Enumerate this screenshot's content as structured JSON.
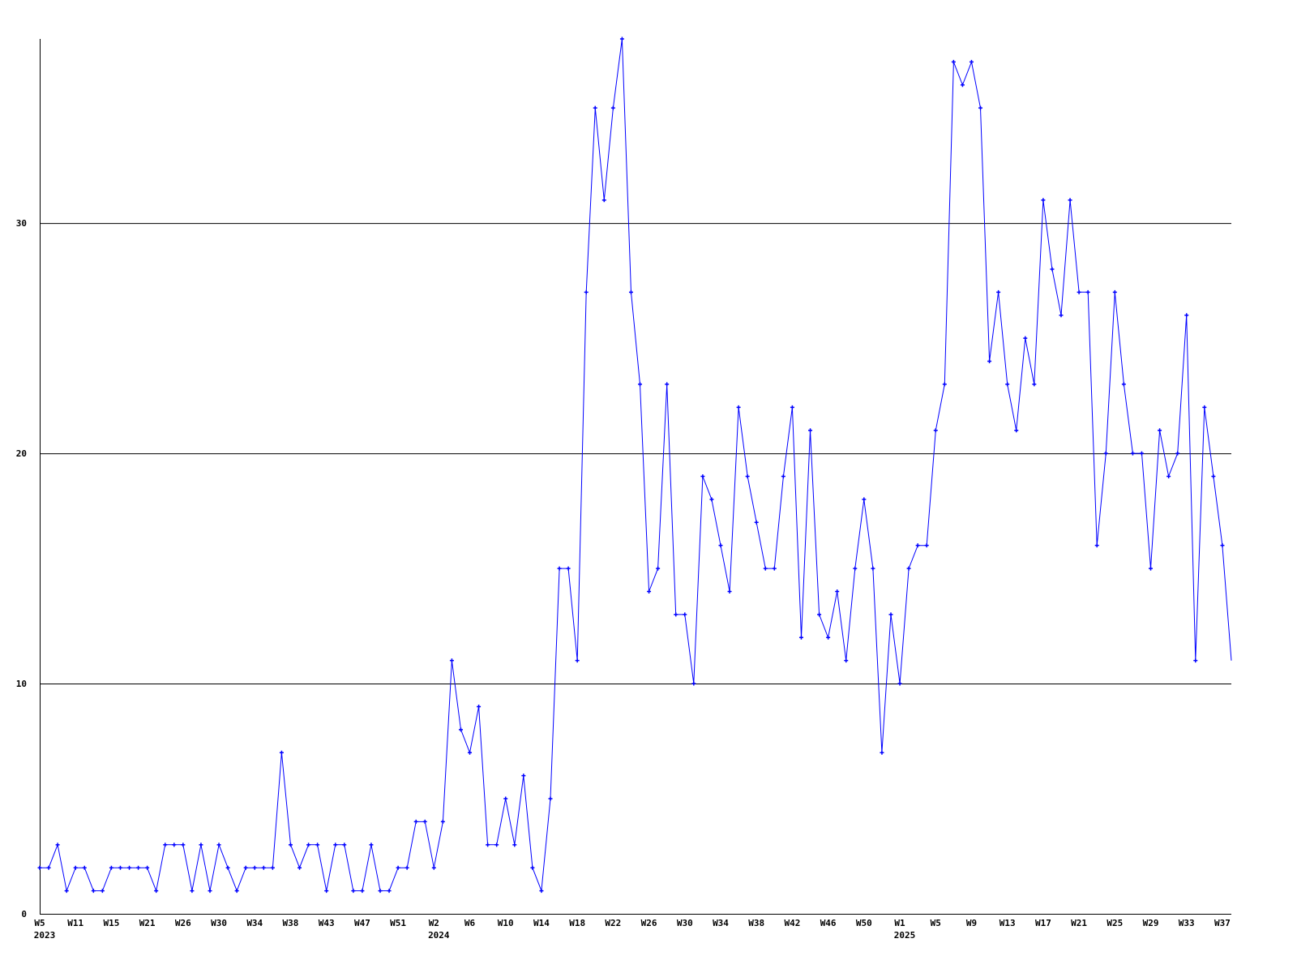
{
  "chart_data": {
    "type": "line",
    "title": "",
    "xlabel": "",
    "ylabel": "",
    "ylim": [
      0,
      38
    ],
    "yticks": [
      0,
      10,
      20,
      30
    ],
    "grid": "horizontal",
    "line_color": "#0000ff",
    "grid_color": "#000000",
    "x_tick_labels": [
      {
        "index": 0,
        "label": "W5",
        "year": "2023"
      },
      {
        "index": 4,
        "label": "W11"
      },
      {
        "index": 8,
        "label": "W15"
      },
      {
        "index": 12,
        "label": "W21"
      },
      {
        "index": 16,
        "label": "W26"
      },
      {
        "index": 20,
        "label": "W30"
      },
      {
        "index": 24,
        "label": "W34"
      },
      {
        "index": 28,
        "label": "W38"
      },
      {
        "index": 32,
        "label": "W43"
      },
      {
        "index": 36,
        "label": "W47"
      },
      {
        "index": 40,
        "label": "W51"
      },
      {
        "index": 44,
        "label": "W2",
        "year": "2024"
      },
      {
        "index": 48,
        "label": "W6"
      },
      {
        "index": 52,
        "label": "W10"
      },
      {
        "index": 56,
        "label": "W14"
      },
      {
        "index": 60,
        "label": "W18"
      },
      {
        "index": 64,
        "label": "W22"
      },
      {
        "index": 68,
        "label": "W26"
      },
      {
        "index": 72,
        "label": "W30"
      },
      {
        "index": 76,
        "label": "W34"
      },
      {
        "index": 80,
        "label": "W38"
      },
      {
        "index": 84,
        "label": "W42"
      },
      {
        "index": 88,
        "label": "W46"
      },
      {
        "index": 92,
        "label": "W50"
      },
      {
        "index": 96,
        "label": "W1",
        "year": "2025"
      },
      {
        "index": 100,
        "label": "W5"
      },
      {
        "index": 104,
        "label": "W9"
      },
      {
        "index": 108,
        "label": "W13"
      },
      {
        "index": 112,
        "label": "W17"
      },
      {
        "index": 116,
        "label": "W21"
      },
      {
        "index": 120,
        "label": "W25"
      },
      {
        "index": 124,
        "label": "W29"
      },
      {
        "index": 128,
        "label": "W33"
      },
      {
        "index": 132,
        "label": "W37"
      }
    ],
    "values": [
      2,
      2,
      3,
      1,
      2,
      2,
      1,
      1,
      2,
      2,
      2,
      2,
      2,
      1,
      3,
      3,
      3,
      1,
      3,
      1,
      3,
      2,
      1,
      2,
      2,
      2,
      2,
      7,
      3,
      2,
      3,
      3,
      1,
      3,
      3,
      1,
      1,
      3,
      1,
      1,
      2,
      2,
      4,
      4,
      2,
      4,
      11,
      8,
      7,
      9,
      3,
      3,
      5,
      3,
      6,
      2,
      1,
      5,
      15,
      15,
      11,
      27,
      35,
      31,
      35,
      38,
      27,
      23,
      14,
      15,
      23,
      13,
      13,
      10,
      19,
      18,
      16,
      14,
      22,
      19,
      17,
      15,
      15,
      19,
      22,
      12,
      21,
      13,
      12,
      14,
      11,
      15,
      18,
      15,
      7,
      13,
      10,
      15,
      16,
      16,
      21,
      23,
      37,
      36,
      37,
      35,
      24,
      27,
      23,
      21,
      25,
      23,
      31,
      28,
      26,
      31,
      27,
      27,
      16,
      20,
      27,
      23,
      20,
      20,
      15,
      21,
      19,
      20,
      26,
      11,
      22,
      19,
      16,
      11
    ]
  }
}
